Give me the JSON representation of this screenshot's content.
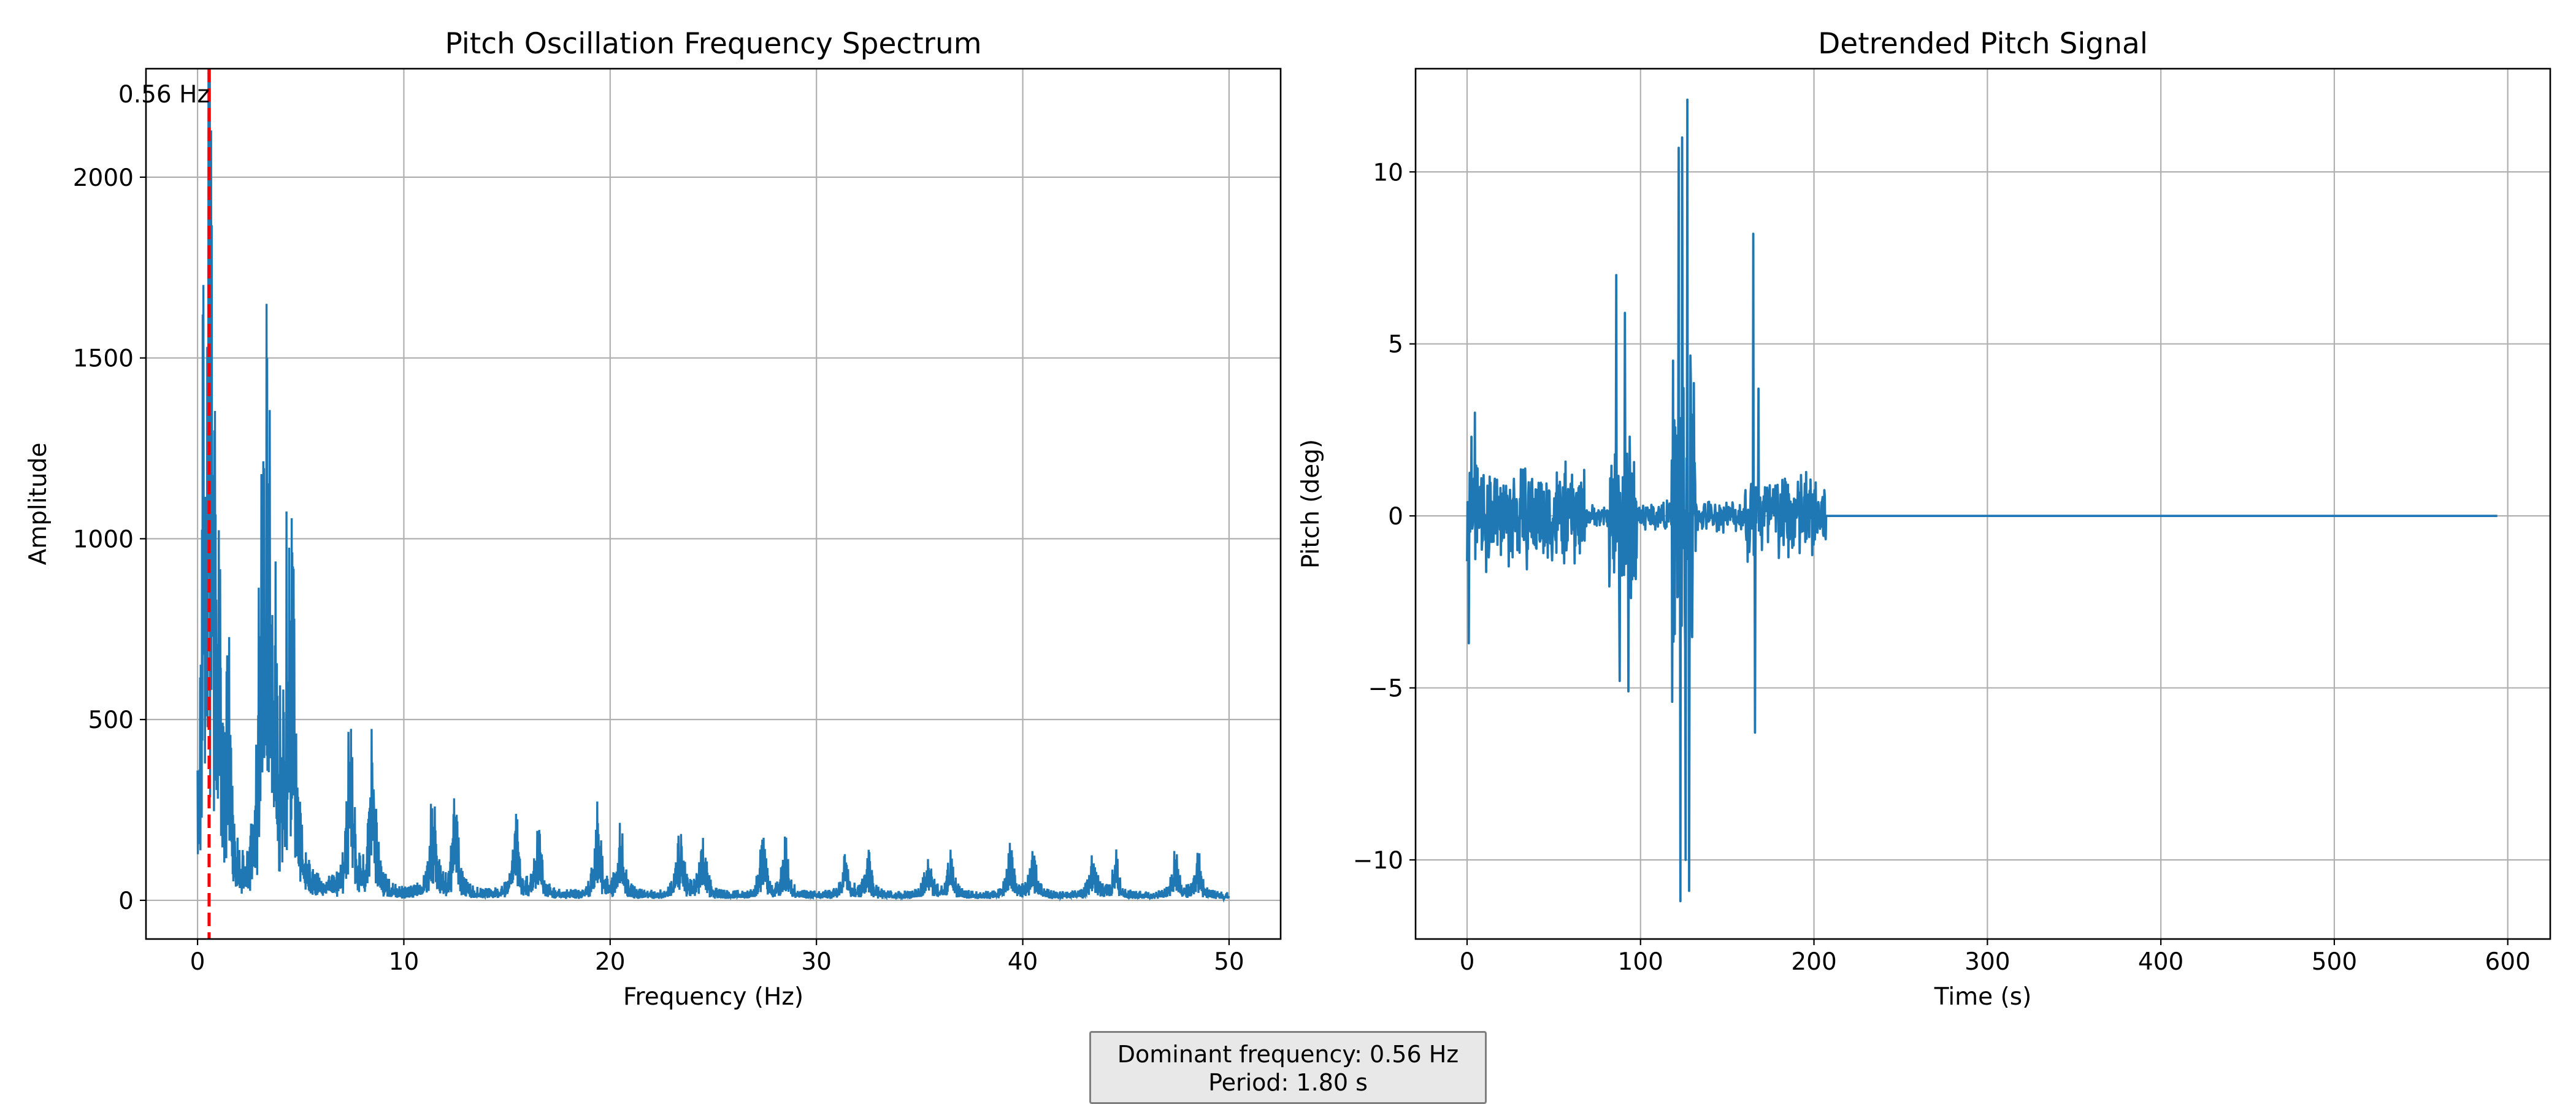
{
  "chart_data": [
    {
      "type": "line",
      "title": "Pitch Oscillation Frequency Spectrum",
      "xlabel": "Frequency (Hz)",
      "ylabel": "Amplitude",
      "xlim": [
        -2.5,
        52.5
      ],
      "ylim": [
        -107,
        2300
      ],
      "xticks": [
        0,
        10,
        20,
        30,
        40,
        50
      ],
      "yticks": [
        0,
        500,
        1000,
        1500,
        2000
      ],
      "grid": true,
      "series_color": "#1f77b4",
      "peaks": [
        {
          "f": 0.3,
          "amp": 1500
        },
        {
          "f": 0.56,
          "amp": 2050
        },
        {
          "f": 0.75,
          "amp": 1150
        },
        {
          "f": 1.05,
          "amp": 930
        },
        {
          "f": 1.5,
          "amp": 640
        },
        {
          "f": 3.1,
          "amp": 880
        },
        {
          "f": 3.4,
          "amp": 1275
        },
        {
          "f": 3.7,
          "amp": 760
        },
        {
          "f": 4.3,
          "amp": 700
        },
        {
          "f": 4.6,
          "amp": 905
        },
        {
          "f": 7.4,
          "amp": 525
        },
        {
          "f": 8.5,
          "amp": 490
        },
        {
          "f": 11.4,
          "amp": 315
        },
        {
          "f": 12.5,
          "amp": 300
        },
        {
          "f": 15.4,
          "amp": 260
        },
        {
          "f": 16.5,
          "amp": 225
        },
        {
          "f": 19.4,
          "amp": 250
        },
        {
          "f": 20.5,
          "amp": 205
        },
        {
          "f": 23.4,
          "amp": 200
        },
        {
          "f": 24.5,
          "amp": 175
        },
        {
          "f": 27.4,
          "amp": 170
        },
        {
          "f": 28.5,
          "amp": 160
        },
        {
          "f": 31.4,
          "amp": 145
        },
        {
          "f": 32.5,
          "amp": 135
        },
        {
          "f": 35.4,
          "amp": 135
        },
        {
          "f": 36.5,
          "amp": 125
        },
        {
          "f": 39.4,
          "amp": 140
        },
        {
          "f": 40.5,
          "amp": 135
        },
        {
          "f": 43.4,
          "amp": 130
        },
        {
          "f": 44.5,
          "amp": 125
        },
        {
          "f": 47.4,
          "amp": 125
        },
        {
          "f": 48.5,
          "amp": 120
        }
      ],
      "f_max": 50,
      "noise_floor": 20,
      "dominant_frequency": 0.56,
      "marker_color": "#ff0000",
      "annotation": "0.56 Hz"
    },
    {
      "type": "line",
      "title": "Detrended Pitch Signal",
      "xlabel": "Time (s)",
      "ylabel": "Pitch (deg)",
      "xlim": [
        -29.7,
        624.5
      ],
      "ylim": [
        -12.3,
        13.0
      ],
      "xticks": [
        0,
        100,
        200,
        300,
        400,
        500,
        600
      ],
      "yticks": [
        -10,
        -5,
        0,
        5,
        10
      ],
      "grid": true,
      "series_color": "#1f77b4",
      "t_end": 594,
      "activity_end": 207,
      "bursts": [
        {
          "t0": 0,
          "t1": 68,
          "amp": 1.7
        },
        {
          "t0": 68,
          "t1": 82,
          "amp": 0.35
        },
        {
          "t0": 82,
          "t1": 98,
          "amp": 3.0
        },
        {
          "t0": 98,
          "t1": 118,
          "amp": 0.5
        },
        {
          "t0": 118,
          "t1": 132,
          "amp": 6.0
        },
        {
          "t0": 132,
          "t1": 160,
          "amp": 0.5
        },
        {
          "t0": 160,
          "t1": 207,
          "amp": 1.6
        }
      ],
      "spikes": [
        {
          "t": 1,
          "v": -3.7
        },
        {
          "t": 2.5,
          "v": 2.3
        },
        {
          "t": 4.5,
          "v": 3.0
        },
        {
          "t": 86,
          "v": 7.0
        },
        {
          "t": 88,
          "v": -4.8
        },
        {
          "t": 91,
          "v": 5.9
        },
        {
          "t": 93,
          "v": -5.1
        },
        {
          "t": 122,
          "v": 10.7
        },
        {
          "t": 123,
          "v": -11.2
        },
        {
          "t": 124,
          "v": 11.0
        },
        {
          "t": 126,
          "v": -10.0
        },
        {
          "t": 127,
          "v": 12.1
        },
        {
          "t": 128,
          "v": -10.9
        },
        {
          "t": 165,
          "v": 8.2
        },
        {
          "t": 166,
          "v": -6.3
        },
        {
          "t": 168,
          "v": 3.7
        }
      ]
    }
  ],
  "summary": {
    "line1": "Dominant frequency: 0.56 Hz",
    "line2": "Period: 1.80 s"
  }
}
